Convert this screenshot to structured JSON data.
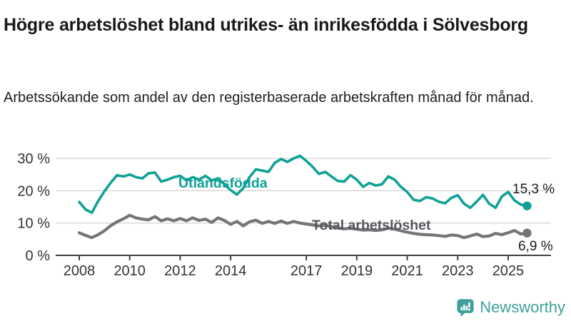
{
  "header": {
    "title": "Högre arbetslöshet bland utrikes- än inrikesfödda i Sölvesborg",
    "subtitle": "Arbetssökande som andel av den registerbaserade arbetskraften månad för månad."
  },
  "chart_data": {
    "type": "line",
    "title": "Högre arbetslöshet bland utrikes- än inrikesfödda i Sölvesborg",
    "subtitle": "Arbetssökande som andel av den registerbaserade arbetskraften månad för månad.",
    "unit": "%",
    "grid": true,
    "legend_position": "inline-labels-on-lines",
    "ylim": [
      0,
      32
    ],
    "y_ticks": [
      {
        "label": "30 %",
        "value": 30
      },
      {
        "label": "20 %",
        "value": 20
      },
      {
        "label": "10 %",
        "value": 10
      },
      {
        "label": "0 %",
        "value": 0
      }
    ],
    "x_ticks": [
      {
        "label": "2008",
        "year": 2008
      },
      {
        "label": "2010",
        "year": 2010
      },
      {
        "label": "2012",
        "year": 2012
      },
      {
        "label": "2014",
        "year": 2014
      },
      {
        "label": "2017",
        "year": 2017
      },
      {
        "label": "2019",
        "year": 2019
      },
      {
        "label": "2021",
        "year": 2021
      },
      {
        "label": "2023",
        "year": 2023
      },
      {
        "label": "2025",
        "year": 2025
      }
    ],
    "x": [
      2008,
      2008.25,
      2008.5,
      2008.75,
      2009,
      2009.25,
      2009.5,
      2009.75,
      2010,
      2010.25,
      2010.5,
      2010.75,
      2011,
      2011.25,
      2011.5,
      2011.75,
      2012,
      2012.25,
      2012.5,
      2012.75,
      2013,
      2013.25,
      2013.5,
      2013.75,
      2014,
      2014.25,
      2014.5,
      2014.75,
      2015,
      2015.25,
      2015.5,
      2015.75,
      2016,
      2016.25,
      2016.5,
      2016.75,
      2017,
      2017.25,
      2017.5,
      2017.75,
      2018,
      2018.25,
      2018.5,
      2018.75,
      2019,
      2019.25,
      2019.5,
      2019.75,
      2020,
      2020.25,
      2020.5,
      2020.75,
      2021,
      2021.25,
      2021.5,
      2021.75,
      2022,
      2022.25,
      2022.5,
      2022.75,
      2023,
      2023.25,
      2023.5,
      2023.75,
      2024,
      2024.25,
      2024.5,
      2024.75,
      2025,
      2025.25,
      2025.5,
      2025.75
    ],
    "series": [
      {
        "name": "Utlandsfödda",
        "color": "#10a195",
        "end_label": "15,3 %",
        "end_value": 15.3,
        "values": [
          16.5,
          14.2,
          13.2,
          16.8,
          19.8,
          22.5,
          24.8,
          24.4,
          25.0,
          24.2,
          23.8,
          25.4,
          25.6,
          22.8,
          23.4,
          24.2,
          24.6,
          23.2,
          24.2,
          23.4,
          24.6,
          23.2,
          23.8,
          22.0,
          20.2,
          18.8,
          20.8,
          24.2,
          26.6,
          26.2,
          25.8,
          28.6,
          29.8,
          28.9,
          30.0,
          30.8,
          29.2,
          27.4,
          25.2,
          25.8,
          24.4,
          23.0,
          22.8,
          24.8,
          23.4,
          21.2,
          22.4,
          21.6,
          22.0,
          24.4,
          23.4,
          21.2,
          19.6,
          17.2,
          16.8,
          18.0,
          17.6,
          16.6,
          16.1,
          17.8,
          18.6,
          16.0,
          14.7,
          16.6,
          18.7,
          16.0,
          14.7,
          18.2,
          19.6,
          17.0,
          15.7,
          15.3
        ]
      },
      {
        "name": "Total arbetslöshet",
        "color": "#757578",
        "end_label": "6,9 %",
        "end_value": 6.9,
        "values": [
          7.0,
          6.2,
          5.5,
          6.4,
          7.6,
          9.2,
          10.4,
          11.3,
          12.4,
          11.6,
          11.2,
          11.0,
          12.0,
          10.7,
          11.3,
          10.7,
          11.4,
          10.7,
          11.6,
          10.8,
          11.2,
          10.2,
          11.6,
          10.8,
          9.6,
          10.5,
          9.1,
          10.4,
          10.9,
          9.9,
          10.5,
          9.9,
          10.6,
          9.9,
          10.5,
          10.0,
          9.7,
          9.4,
          9.1,
          9.3,
          8.9,
          8.5,
          8.2,
          8.4,
          8.1,
          7.8,
          7.9,
          7.7,
          7.9,
          8.4,
          8.1,
          7.6,
          7.2,
          6.8,
          6.5,
          6.4,
          6.3,
          6.1,
          5.9,
          6.3,
          6.1,
          5.5,
          6.0,
          6.6,
          5.8,
          6.0,
          6.8,
          6.4,
          7.0,
          7.7,
          6.6,
          6.9
        ]
      }
    ]
  },
  "footer": {
    "brand": "Newsworthy",
    "brand_color": "#3fa09b",
    "icon": "newsworthy-speech-bubble-bar-chart-icon"
  },
  "colors": {
    "accent_teal": "#10a195",
    "line_gray": "#757578",
    "axis": "#404040",
    "gridline": "#d4d4d4",
    "text": "#191919"
  }
}
